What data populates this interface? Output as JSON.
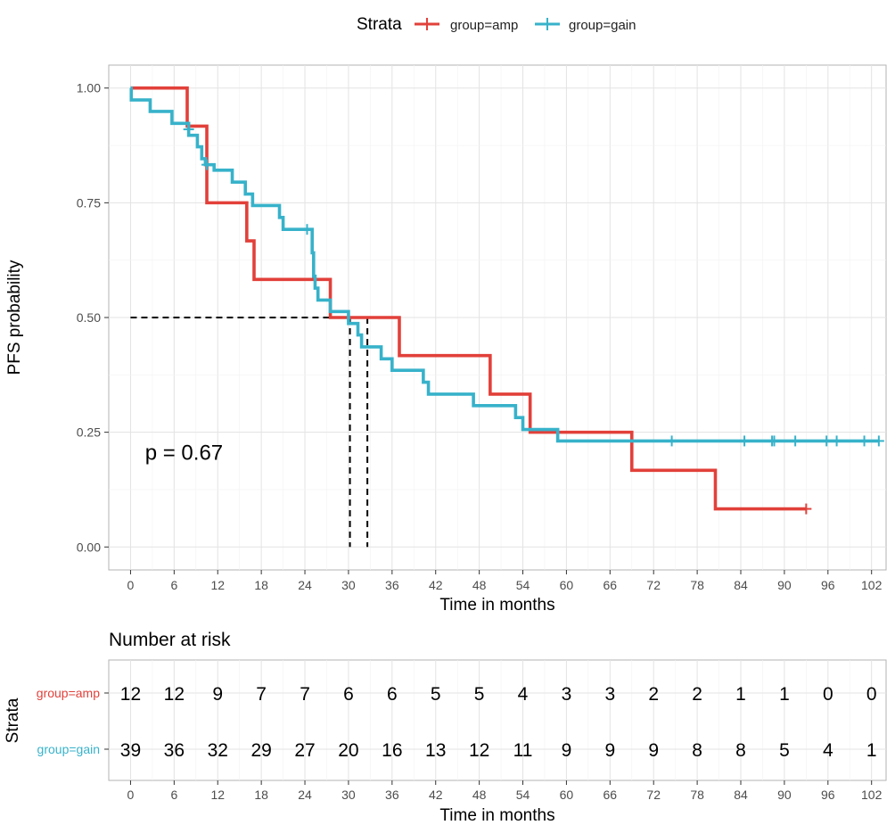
{
  "chart_data": [
    {
      "type": "line",
      "subtype": "kaplan-meier",
      "legend": {
        "title": "Strata",
        "placement": "top",
        "entries": [
          "group=amp",
          "group=gain"
        ]
      },
      "xlabel": "Time in months",
      "ylabel": "PFS probability",
      "xlim": [
        -3,
        104
      ],
      "ylim": [
        -0.05,
        1.05
      ],
      "xticks": [
        0,
        6,
        12,
        18,
        24,
        30,
        36,
        42,
        48,
        54,
        60,
        66,
        72,
        78,
        84,
        90,
        96,
        102
      ],
      "xtick_labels": [
        "0",
        "6",
        "12",
        "18",
        "24",
        "30",
        "36",
        "42",
        "48",
        "54",
        "60",
        "66",
        "72",
        "78",
        "84",
        "90",
        "96",
        "102"
      ],
      "yticks": [
        0,
        0.25,
        0.5,
        0.75,
        1.0
      ],
      "ytick_labels": [
        "0.00",
        "0.25",
        "0.50",
        "0.75",
        "1.00"
      ],
      "grid": true,
      "annotation": "p = 0.67",
      "annotation_anchor": [
        2,
        0.19
      ],
      "median_lines": [
        {
          "series": "group=gain",
          "time": 30.2,
          "survival": 0.5
        },
        {
          "series": "group=amp",
          "time": 32.6,
          "survival": 0.5
        }
      ],
      "series": [
        {
          "name": "group=amp",
          "color": "#e2403a",
          "steps": [
            [
              0,
              1.0
            ],
            [
              7.8,
              0.917
            ],
            [
              10.5,
              0.75
            ],
            [
              16,
              0.667
            ],
            [
              17,
              0.583
            ],
            [
              27.5,
              0.5
            ],
            [
              37,
              0.417
            ],
            [
              49.5,
              0.333
            ],
            [
              55,
              0.25
            ],
            [
              69,
              0.167
            ],
            [
              80.5,
              0.083
            ],
            [
              93,
              0.083
            ]
          ],
          "censored": [
            [
              93,
              0.083
            ]
          ]
        },
        {
          "name": "group=gain",
          "color": "#37b2ca",
          "steps": [
            [
              0,
              1.0
            ],
            [
              0.1,
              0.974
            ],
            [
              2.7,
              0.949
            ],
            [
              5.7,
              0.923
            ],
            [
              8,
              0.897
            ],
            [
              9.2,
              0.872
            ],
            [
              9.8,
              0.846
            ],
            [
              10.3,
              0.833
            ],
            [
              11.5,
              0.821
            ],
            [
              14,
              0.795
            ],
            [
              15.8,
              0.769
            ],
            [
              16.8,
              0.744
            ],
            [
              20.5,
              0.718
            ],
            [
              21,
              0.692
            ],
            [
              25,
              0.641
            ],
            [
              25.2,
              0.59
            ],
            [
              25.4,
              0.564
            ],
            [
              25.8,
              0.538
            ],
            [
              27.5,
              0.513
            ],
            [
              30,
              0.487
            ],
            [
              31.3,
              0.462
            ],
            [
              31.8,
              0.436
            ],
            [
              34.5,
              0.41
            ],
            [
              36,
              0.385
            ],
            [
              40.3,
              0.359
            ],
            [
              41,
              0.333
            ],
            [
              47.2,
              0.308
            ],
            [
              53,
              0.282
            ],
            [
              54,
              0.256
            ],
            [
              58.8,
              0.231
            ],
            [
              103,
              0.231
            ]
          ],
          "censored": [
            [
              8,
              0.91
            ],
            [
              10.5,
              0.833
            ],
            [
              24.3,
              0.692
            ],
            [
              74.5,
              0.231
            ],
            [
              84.5,
              0.231
            ],
            [
              88.3,
              0.231
            ],
            [
              88.6,
              0.231
            ],
            [
              91.5,
              0.231
            ],
            [
              95.8,
              0.231
            ],
            [
              97.2,
              0.231
            ],
            [
              101,
              0.231
            ],
            [
              103,
              0.231
            ]
          ]
        }
      ]
    },
    {
      "type": "table",
      "title": "Number at risk",
      "ylabel": "Strata",
      "xlabel": "Time in months",
      "xticks": [
        0,
        6,
        12,
        18,
        24,
        30,
        36,
        42,
        48,
        54,
        60,
        66,
        72,
        78,
        84,
        90,
        96,
        102
      ],
      "xtick_labels": [
        "0",
        "6",
        "12",
        "18",
        "24",
        "30",
        "36",
        "42",
        "48",
        "54",
        "60",
        "66",
        "72",
        "78",
        "84",
        "90",
        "96",
        "102"
      ],
      "rows": [
        {
          "name": "group=amp",
          "color": "#e2403a",
          "values": [
            12,
            12,
            9,
            7,
            7,
            6,
            6,
            5,
            5,
            4,
            3,
            3,
            2,
            2,
            1,
            1,
            0,
            0
          ]
        },
        {
          "name": "group=gain",
          "color": "#37b2ca",
          "values": [
            39,
            36,
            32,
            29,
            27,
            20,
            16,
            13,
            12,
            11,
            9,
            9,
            9,
            8,
            8,
            5,
            4,
            1
          ]
        }
      ]
    }
  ]
}
